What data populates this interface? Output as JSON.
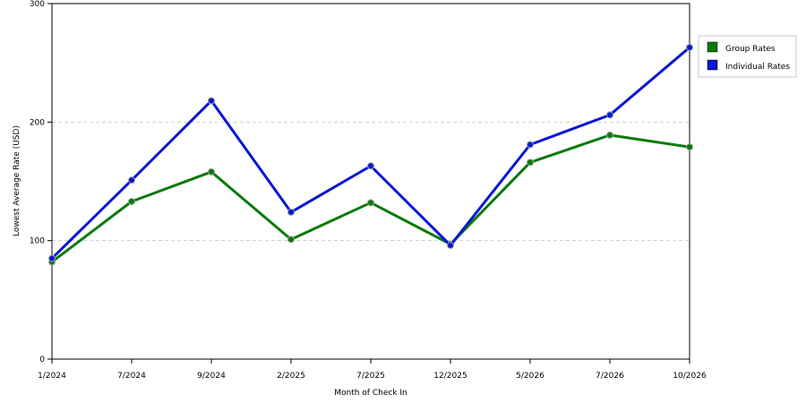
{
  "chart_data": {
    "type": "line",
    "title": "",
    "xlabel": "Month of Check In",
    "ylabel": "Lowest Average Rate (USD)",
    "categories": [
      "1/2024",
      "7/2024",
      "9/2024",
      "2/2025",
      "7/2025",
      "12/2025",
      "5/2026",
      "7/2026",
      "10/2026"
    ],
    "ylim": [
      0,
      300
    ],
    "yticks": [
      0,
      100,
      200,
      300
    ],
    "grid": "horizontal dashed",
    "legend_position": "top-right",
    "series": [
      {
        "name": "Group Rates",
        "color": "#0a7a0a",
        "values": [
          82,
          133,
          158,
          101,
          132,
          97,
          166,
          189,
          179
        ]
      },
      {
        "name": "Individual Rates",
        "color": "#0a16d6",
        "values": [
          85,
          151,
          218,
          124,
          163,
          96,
          181,
          206,
          263
        ]
      }
    ]
  }
}
